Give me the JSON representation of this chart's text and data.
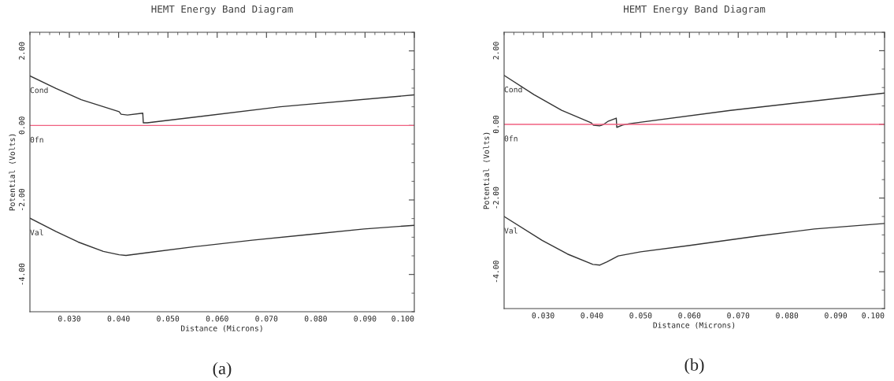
{
  "chart_data": [
    {
      "type": "line",
      "title": "HEMT Energy Band Diagram",
      "xlabel": "Distance (Microns)",
      "ylabel": "Potential (Volts)",
      "xlim": [
        0.022,
        0.1
      ],
      "ylim": [
        -5,
        2.5
      ],
      "xticks": [
        {
          "value": 0.03,
          "label": "0.030"
        },
        {
          "value": 0.04,
          "label": "0.040"
        },
        {
          "value": 0.05,
          "label": "0.050"
        },
        {
          "value": 0.06,
          "label": "0.060"
        },
        {
          "value": 0.07,
          "label": "0.070"
        },
        {
          "value": 0.08,
          "label": "0.080"
        },
        {
          "value": 0.09,
          "label": "0.090"
        },
        {
          "value": 0.1,
          "label": "0.100"
        }
      ],
      "yticks": [
        {
          "value": 2,
          "label": "2.00"
        },
        {
          "value": 0,
          "label": "0.00"
        },
        {
          "value": -2,
          "label": "-2.00"
        },
        {
          "value": -4,
          "label": "-4.00"
        }
      ],
      "grid": false,
      "legend": false,
      "marker": "none",
      "line_style": "solid",
      "series": [
        {
          "name": "Cond",
          "color": "#333333",
          "x": [
            0.022,
            0.0273,
            0.0324,
            0.0401,
            0.0405,
            0.0418,
            0.0449,
            0.045,
            0.0458,
            0.0728,
            0.1
          ],
          "values": [
            1.33,
            0.99,
            0.69,
            0.37,
            0.3,
            0.28,
            0.33,
            0.07,
            0.07,
            0.5,
            0.82
          ]
        },
        {
          "name": "0fn",
          "color": "#f06080",
          "x": [
            0.022,
            0.1
          ],
          "values": [
            0,
            0
          ]
        },
        {
          "name": "Val",
          "color": "#333333",
          "x": [
            0.022,
            0.0273,
            0.0318,
            0.0369,
            0.0401,
            0.0415,
            0.0455,
            0.0557,
            0.0671,
            0.0785,
            0.0898,
            0.1
          ],
          "values": [
            -2.49,
            -2.85,
            -3.13,
            -3.38,
            -3.47,
            -3.49,
            -3.42,
            -3.25,
            -3.08,
            -2.93,
            -2.78,
            -2.68
          ]
        }
      ],
      "annotations": [
        "(a)"
      ]
    },
    {
      "type": "line",
      "title": "HEMT Energy Band Diagram",
      "xlabel": "Distance (Microns)",
      "ylabel": "Potential (Volts)",
      "xlim": [
        0.022,
        0.1
      ],
      "ylim": [
        -5,
        2.5
      ],
      "xticks": [
        {
          "value": 0.03,
          "label": "0.030"
        },
        {
          "value": 0.04,
          "label": "0.040"
        },
        {
          "value": 0.05,
          "label": "0.050"
        },
        {
          "value": 0.06,
          "label": "0.060"
        },
        {
          "value": 0.07,
          "label": "0.070"
        },
        {
          "value": 0.08,
          "label": "0.080"
        },
        {
          "value": 0.09,
          "label": "0.090"
        },
        {
          "value": 0.1,
          "label": "0.100"
        }
      ],
      "yticks": [
        {
          "value": 2,
          "label": "2.00"
        },
        {
          "value": 0,
          "label": "0.00"
        },
        {
          "value": -2,
          "label": "-2.00"
        },
        {
          "value": -4,
          "label": "-4.00"
        }
      ],
      "grid": false,
      "legend": false,
      "marker": "none",
      "line_style": "solid",
      "series": [
        {
          "name": "Cond",
          "color": "#333333",
          "x": [
            0.022,
            0.0281,
            0.0338,
            0.0399,
            0.0403,
            0.0416,
            0.0424,
            0.0434,
            0.045,
            0.0451,
            0.0463,
            0.0477,
            0.0684,
            0.1
          ],
          "values": [
            1.33,
            0.81,
            0.38,
            0.04,
            -0.02,
            -0.04,
            0.0,
            0.09,
            0.17,
            -0.08,
            -0.02,
            0.02,
            0.38,
            0.85
          ]
        },
        {
          "name": "0fn",
          "color": "#f06080",
          "x": [
            0.022,
            0.1
          ],
          "values": [
            0,
            0
          ]
        },
        {
          "name": "Val",
          "color": "#333333",
          "x": [
            0.022,
            0.0298,
            0.035,
            0.0402,
            0.0416,
            0.0431,
            0.0454,
            0.05,
            0.0598,
            0.0741,
            0.0856,
            0.1
          ],
          "values": [
            -2.5,
            -3.15,
            -3.52,
            -3.8,
            -3.82,
            -3.73,
            -3.57,
            -3.46,
            -3.29,
            -3.03,
            -2.84,
            -2.69
          ]
        }
      ],
      "annotations": [
        "(b)"
      ]
    }
  ]
}
